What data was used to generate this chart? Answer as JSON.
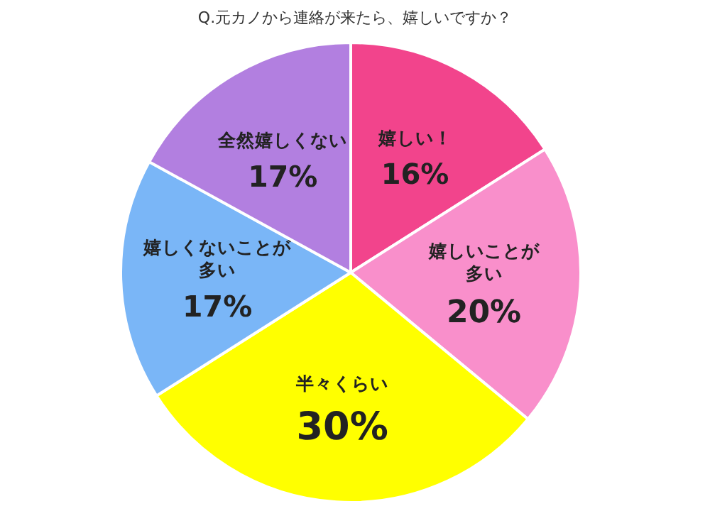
{
  "chart_data": {
    "type": "pie",
    "title": "Q.元カノから連絡が来たら、嬉しいですか？",
    "categories": [
      "嬉しい！",
      "嬉しいことが多い",
      "半々くらい",
      "嬉しくないことが多い",
      "全然嬉しくない"
    ],
    "values": [
      16,
      20,
      30,
      17,
      17
    ],
    "value_labels": [
      "16%",
      "20%",
      "30%",
      "17%",
      "17%"
    ],
    "colors": [
      "#f2448c",
      "#f98fcb",
      "#ffff00",
      "#7ab6f7",
      "#b27fe0"
    ]
  }
}
